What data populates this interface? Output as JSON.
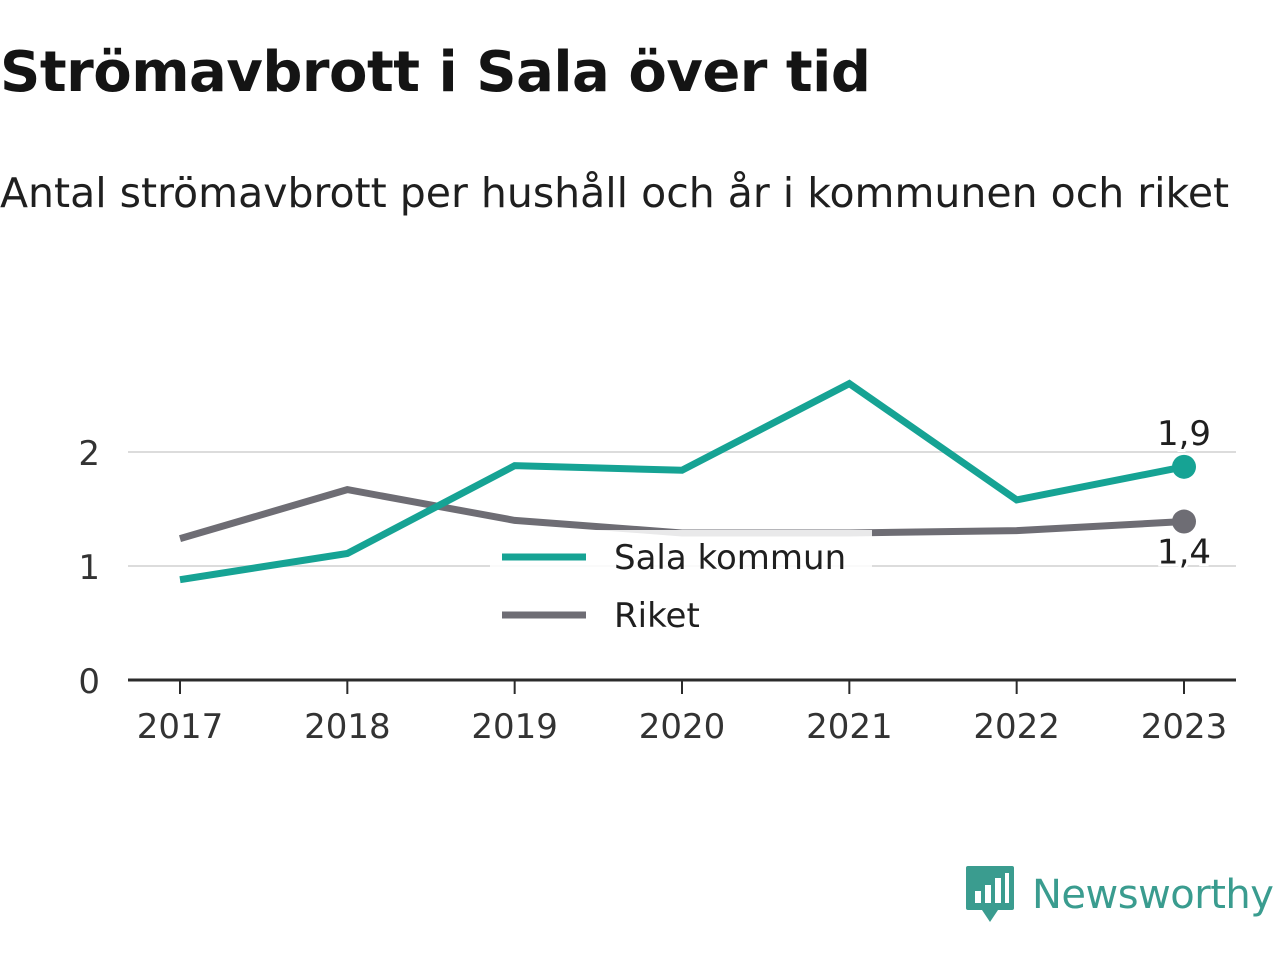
{
  "header": {
    "title": "Strömavbrott i Sala över tid",
    "subtitle": "Antal strömavbrott per hushåll och år i kommunen och riket"
  },
  "chart_data": {
    "type": "line",
    "title": "Strömavbrott i Sala över tid",
    "subtitle": "Antal strömavbrott per hushåll och år i kommunen och riket",
    "xlabel": "",
    "ylabel": "",
    "categories": [
      "2017",
      "2018",
      "2019",
      "2020",
      "2021",
      "2022",
      "2023"
    ],
    "ylim": [
      0,
      2.5
    ],
    "yticks": [
      0,
      1,
      2
    ],
    "ytick_labels": [
      "0",
      "1",
      "2"
    ],
    "grid": true,
    "legend_position": "center",
    "series": [
      {
        "name": "Sala kommun",
        "color": "#16a394",
        "values": [
          0.88,
          1.11,
          1.88,
          1.84,
          2.6,
          1.58,
          1.87
        ],
        "end_label": "1,9"
      },
      {
        "name": "Riket",
        "color": "#6e6d74",
        "values": [
          1.24,
          1.67,
          1.4,
          1.29,
          1.29,
          1.31,
          1.39
        ],
        "end_label": "1,4"
      }
    ]
  },
  "brand": {
    "name": "Newsworthy",
    "color": "#3a9c8f",
    "icon": "chart-speech-bubble-icon"
  }
}
